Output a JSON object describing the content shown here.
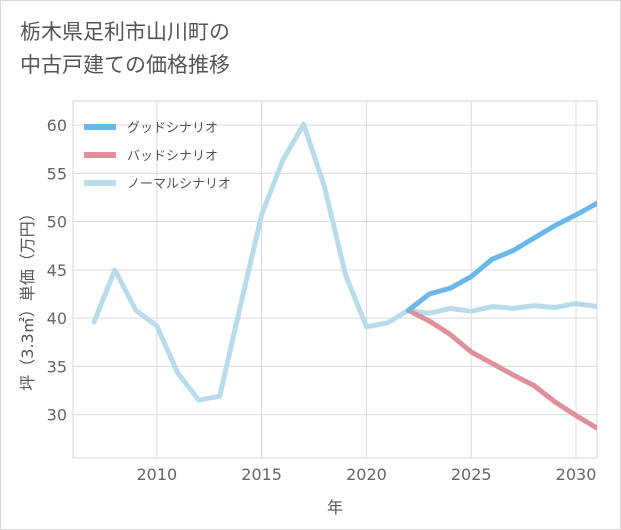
{
  "title": {
    "line1": "栃木県足利市山川町の",
    "line2": "中古戸建ての価格推移"
  },
  "chart_data": {
    "type": "line",
    "xlabel": "年",
    "ylabel": "坪（3.3㎡）単価（万円）",
    "xlim": [
      2006,
      2031
    ],
    "ylim": [
      25.5,
      62.5
    ],
    "xticks": [
      2010,
      2015,
      2020,
      2025,
      2030
    ],
    "yticks": [
      30,
      35,
      40,
      45,
      50,
      55,
      60
    ],
    "grid": true,
    "legend_position": "top-left",
    "series": [
      {
        "name": "グッドシナリオ",
        "color": "#6ab7ea",
        "points": [
          [
            2022,
            40.8
          ],
          [
            2023,
            42.5
          ],
          [
            2024,
            43.1
          ],
          [
            2025,
            44.3
          ],
          [
            2026,
            46.1
          ],
          [
            2027,
            47.0
          ],
          [
            2028,
            48.3
          ],
          [
            2029,
            49.6
          ],
          [
            2030,
            50.7
          ],
          [
            2031,
            51.9
          ]
        ]
      },
      {
        "name": "バッドシナリオ",
        "color": "#e0909a",
        "points": [
          [
            2022,
            40.8
          ],
          [
            2023,
            39.7
          ],
          [
            2024,
            38.3
          ],
          [
            2025,
            36.5
          ],
          [
            2026,
            35.3
          ],
          [
            2027,
            34.1
          ],
          [
            2028,
            33.0
          ],
          [
            2029,
            31.3
          ],
          [
            2030,
            29.9
          ],
          [
            2031,
            28.6
          ]
        ]
      },
      {
        "name": "ノーマルシナリオ",
        "color": "#b8dcec",
        "points": [
          [
            2007,
            39.6
          ],
          [
            2008,
            45.0
          ],
          [
            2009,
            40.8
          ],
          [
            2010,
            39.2
          ],
          [
            2011,
            34.3
          ],
          [
            2012,
            31.5
          ],
          [
            2013,
            31.9
          ],
          [
            2014,
            41.4
          ],
          [
            2015,
            50.7
          ],
          [
            2016,
            56.3
          ],
          [
            2017,
            60.1
          ],
          [
            2018,
            53.6
          ],
          [
            2019,
            44.5
          ],
          [
            2020,
            39.1
          ],
          [
            2021,
            39.5
          ],
          [
            2022,
            40.8
          ],
          [
            2023,
            40.5
          ],
          [
            2024,
            41.0
          ],
          [
            2025,
            40.7
          ],
          [
            2026,
            41.2
          ],
          [
            2027,
            41.0
          ],
          [
            2028,
            41.3
          ],
          [
            2029,
            41.1
          ],
          [
            2030,
            41.5
          ],
          [
            2031,
            41.2
          ]
        ]
      }
    ]
  }
}
